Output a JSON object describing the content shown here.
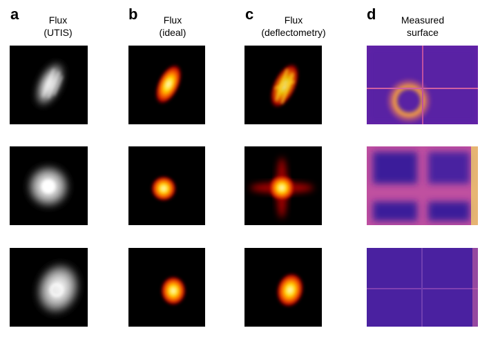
{
  "panels": [
    {
      "label": "a",
      "title": [
        "Flux",
        "(UTIS)"
      ]
    },
    {
      "label": "b",
      "title": [
        "Flux",
        "(ideal)"
      ]
    },
    {
      "label": "c",
      "title": [
        "Flux",
        "(deflectometry)"
      ]
    },
    {
      "label": "d",
      "title": [
        "Measured",
        "surface"
      ]
    }
  ]
}
